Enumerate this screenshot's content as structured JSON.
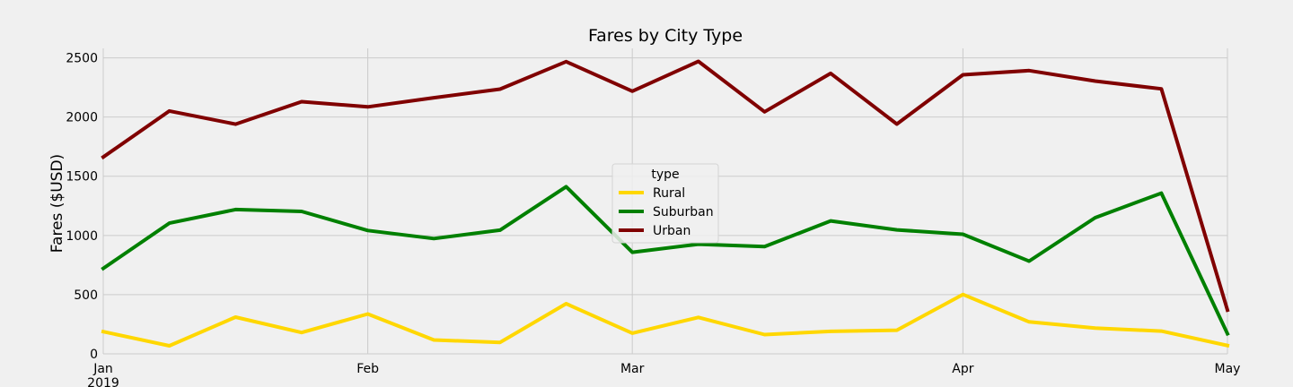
{
  "chart_data": {
    "type": "line",
    "title": "Fares by City Type",
    "xlabel": "",
    "ylabel": "Fares ($USD)",
    "ylim": [
      0,
      2580
    ],
    "yticks": [
      0,
      500,
      1000,
      1500,
      2000,
      2500
    ],
    "x": [
      "2019-01-06",
      "2019-01-13",
      "2019-01-20",
      "2019-01-27",
      "2019-02-03",
      "2019-02-10",
      "2019-02-17",
      "2019-02-24",
      "2019-03-03",
      "2019-03-10",
      "2019-03-17",
      "2019-03-24",
      "2019-03-31",
      "2019-04-07",
      "2019-04-14",
      "2019-04-21",
      "2019-04-28",
      "2019-05-05"
    ],
    "xlim": [
      "2019-01-06",
      "2019-05-05"
    ],
    "xticks": [
      {
        "date": "2019-01-06",
        "label": "Jan",
        "sublabel": "2019"
      },
      {
        "date": "2019-02-03",
        "label": "Feb",
        "sublabel": ""
      },
      {
        "date": "2019-03-03",
        "label": "Mar",
        "sublabel": ""
      },
      {
        "date": "2019-04-07",
        "label": "Apr",
        "sublabel": ""
      },
      {
        "date": "2019-05-05",
        "label": "May",
        "sublabel": ""
      }
    ],
    "legend": {
      "title": "type",
      "placement": "center"
    },
    "grid": true,
    "series": [
      {
        "name": "Rural",
        "color": "#ffd700",
        "values": [
          188,
          68,
          310,
          180,
          337,
          117,
          97,
          424,
          175,
          308,
          163,
          190,
          200,
          502,
          270,
          217,
          192,
          70
        ]
      },
      {
        "name": "Suburban",
        "color": "#008000",
        "values": [
          722,
          1104,
          1219,
          1203,
          1042,
          974,
          1045,
          1412,
          858,
          926,
          906,
          1123,
          1047,
          1010,
          783,
          1150,
          1357,
          170
        ]
      },
      {
        "name": "Urban",
        "color": "#800000",
        "values": [
          1662,
          2051,
          1940,
          2130,
          2086,
          2163,
          2236,
          2468,
          2218,
          2470,
          2044,
          2369,
          1941,
          2357,
          2392,
          2304,
          2238,
          370
        ]
      }
    ]
  }
}
